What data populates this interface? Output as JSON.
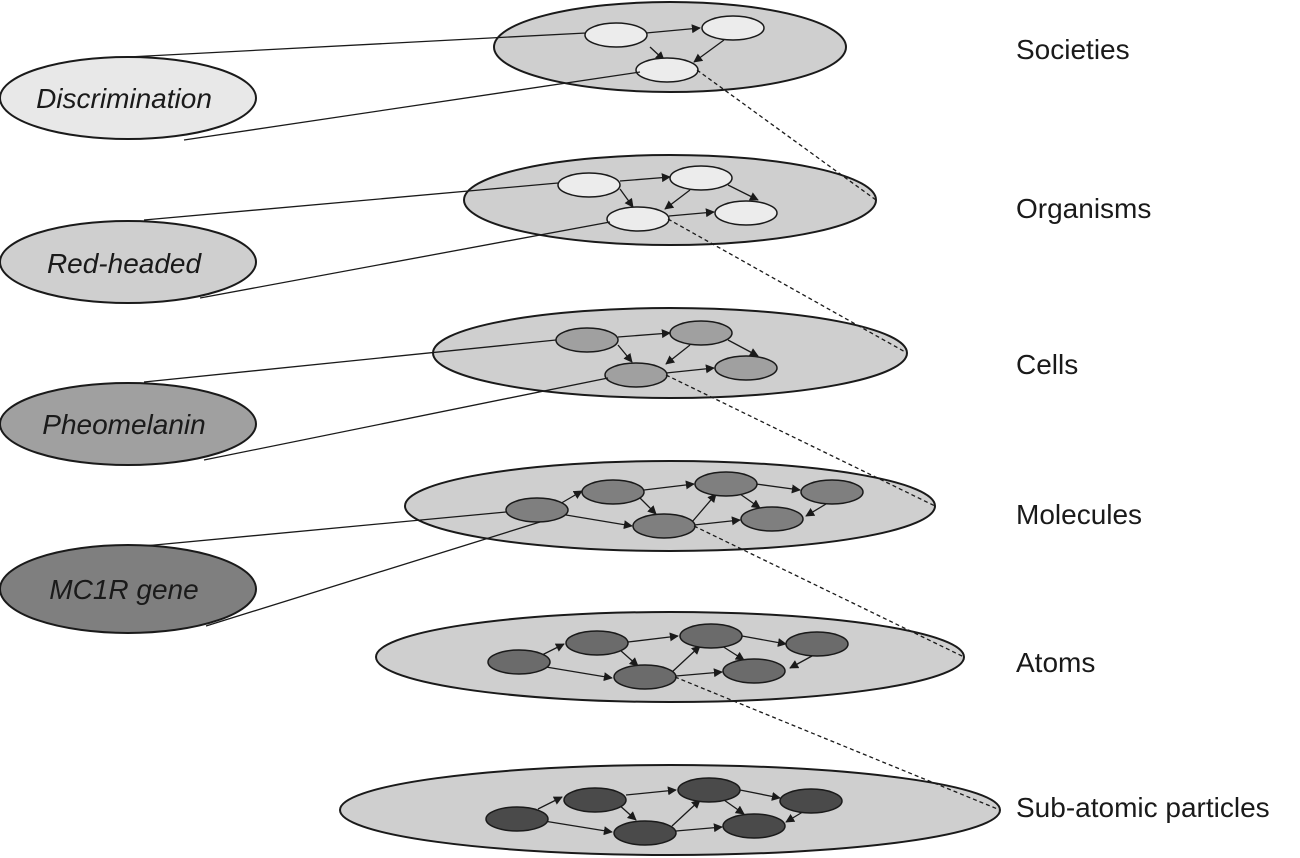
{
  "levels": [
    {
      "label": "Societies"
    },
    {
      "label": "Organisms"
    },
    {
      "label": "Cells"
    },
    {
      "label": "Molecules"
    },
    {
      "label": "Atoms"
    },
    {
      "label": "Sub-atomic particles"
    }
  ],
  "callouts": [
    {
      "label": "Discrimination"
    },
    {
      "label": "Red-headed"
    },
    {
      "label": "Pheomelanin"
    },
    {
      "label": "MC1R gene"
    }
  ]
}
